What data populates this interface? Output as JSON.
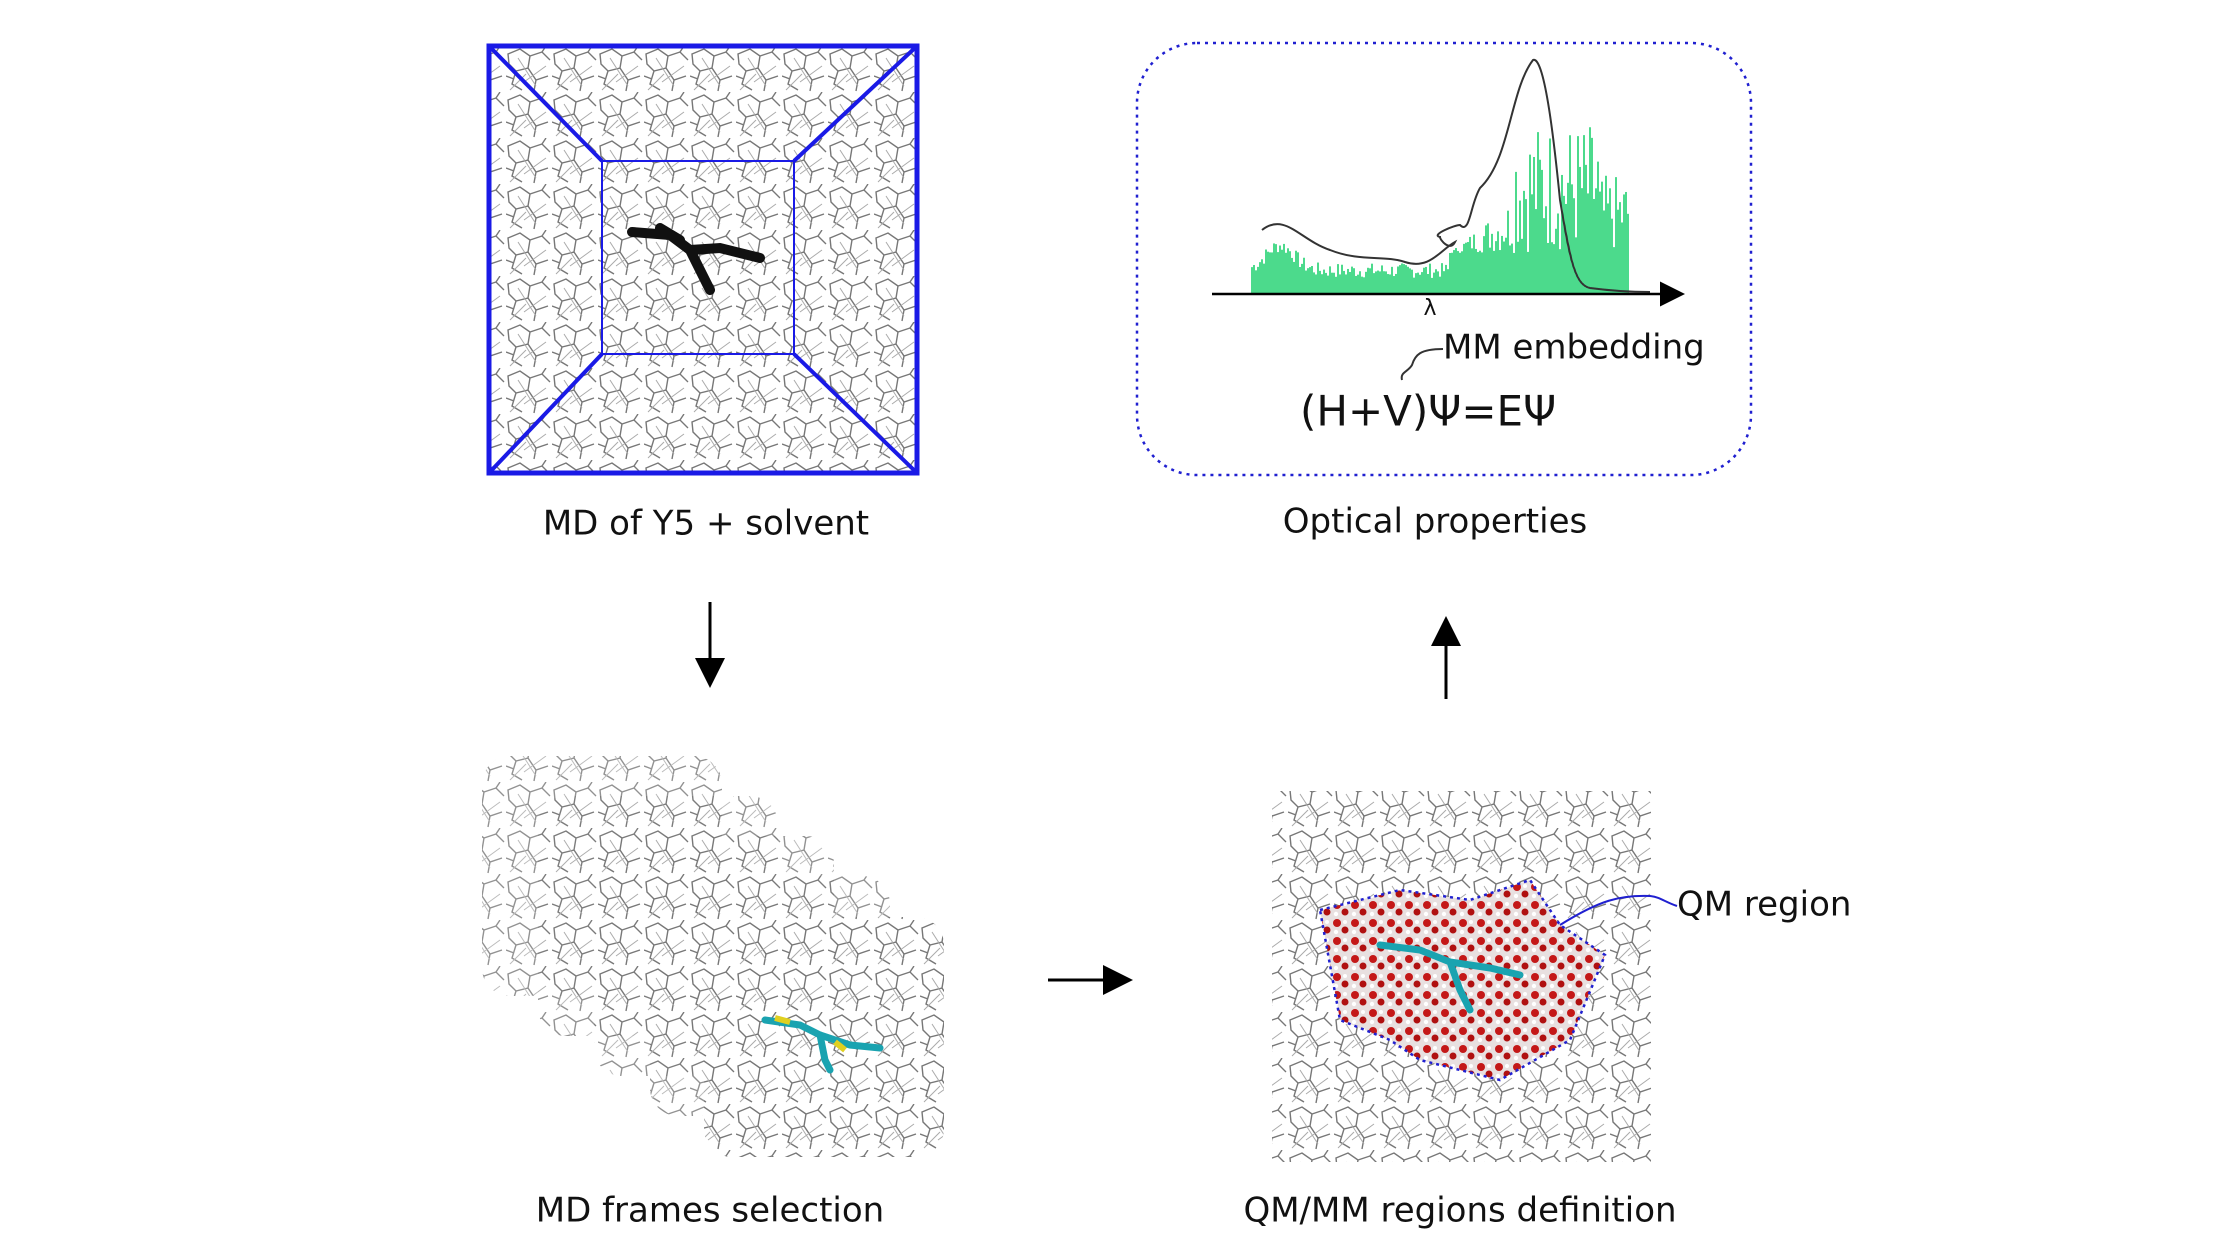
{
  "panels": [
    {
      "label": "MD of Y5 + solvent"
    },
    {
      "label": "Optical properties",
      "axis_label": "λ",
      "annotation": "MM embedding",
      "equation": "(H+V)Ψ=EΨ"
    },
    {
      "label": "MD frames selection"
    },
    {
      "label": "QM/MM regions definition",
      "annotation": "QM region"
    }
  ]
}
